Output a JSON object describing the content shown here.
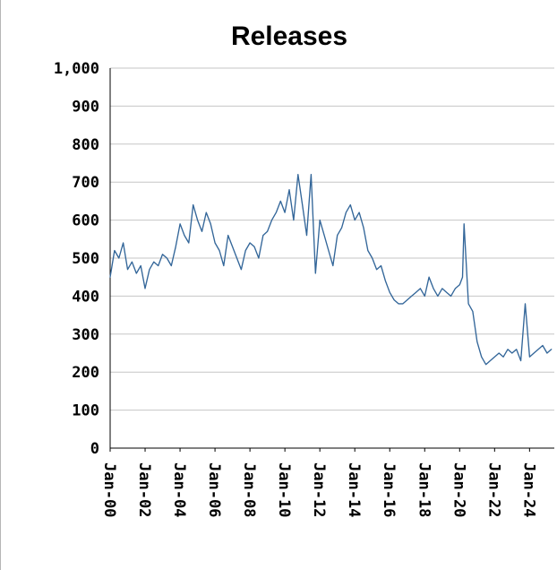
{
  "chart_data": {
    "type": "line",
    "title": "Releases",
    "xlabel": "",
    "ylabel": "",
    "ylim": [
      0,
      1000
    ],
    "y_ticks": [
      0,
      100,
      200,
      300,
      400,
      500,
      600,
      700,
      800,
      900,
      1000
    ],
    "y_tick_labels": [
      "0",
      "100",
      "200",
      "300",
      "400",
      "500",
      "600",
      "700",
      "800",
      "900",
      "1,000"
    ],
    "x_tick_labels": [
      "Jan-00",
      "Jan-02",
      "Jan-04",
      "Jan-06",
      "Jan-08",
      "Jan-10",
      "Jan-12",
      "Jan-14",
      "Jan-16",
      "Jan-18",
      "Jan-20",
      "Jan-22",
      "Jan-24"
    ],
    "xlim": [
      "2000-01",
      "2025-06"
    ],
    "grid": true,
    "legend": "none",
    "colors": {
      "series": "#336699",
      "grid": "#c6c6c6",
      "axis": "#000000"
    },
    "series": [
      {
        "x": [
          "2000-01",
          "2000-04",
          "2000-07",
          "2000-10",
          "2001-01",
          "2001-04",
          "2001-07",
          "2001-10",
          "2002-01",
          "2002-04",
          "2002-07",
          "2002-10",
          "2003-01",
          "2003-04",
          "2003-07",
          "2003-10",
          "2004-01",
          "2004-04",
          "2004-07",
          "2004-10",
          "2005-01",
          "2005-04",
          "2005-07",
          "2005-10",
          "2006-01",
          "2006-04",
          "2006-07",
          "2006-10",
          "2007-01",
          "2007-04",
          "2007-07",
          "2007-10",
          "2008-01",
          "2008-04",
          "2008-07",
          "2008-10",
          "2009-01",
          "2009-04",
          "2009-07",
          "2009-10",
          "2010-01",
          "2010-04",
          "2010-07",
          "2010-10",
          "2011-01",
          "2011-04",
          "2011-07",
          "2011-10",
          "2012-01",
          "2012-04",
          "2012-07",
          "2012-10",
          "2013-01",
          "2013-04",
          "2013-07",
          "2013-10",
          "2014-01",
          "2014-04",
          "2014-07",
          "2014-10",
          "2015-01",
          "2015-04",
          "2015-07",
          "2015-10",
          "2016-01",
          "2016-04",
          "2016-07",
          "2016-10",
          "2017-01",
          "2017-04",
          "2017-07",
          "2017-10",
          "2018-01",
          "2018-04",
          "2018-07",
          "2018-10",
          "2019-01",
          "2019-04",
          "2019-07",
          "2019-10",
          "2020-01",
          "2020-03",
          "2020-04",
          "2020-07",
          "2020-10",
          "2021-01",
          "2021-04",
          "2021-07",
          "2021-10",
          "2022-01",
          "2022-04",
          "2022-07",
          "2022-10",
          "2023-01",
          "2023-04",
          "2023-07",
          "2023-10",
          "2024-01",
          "2024-04",
          "2024-07",
          "2024-10",
          "2025-01",
          "2025-04"
        ],
        "values": [
          450,
          520,
          500,
          540,
          470,
          490,
          460,
          480,
          420,
          470,
          490,
          480,
          510,
          500,
          480,
          530,
          590,
          560,
          540,
          640,
          600,
          570,
          620,
          590,
          540,
          520,
          480,
          560,
          530,
          500,
          470,
          520,
          540,
          530,
          500,
          560,
          570,
          600,
          620,
          650,
          620,
          680,
          600,
          720,
          640,
          560,
          720,
          460,
          600,
          560,
          520,
          480,
          560,
          580,
          620,
          640,
          600,
          620,
          580,
          520,
          500,
          470,
          480,
          440,
          410,
          390,
          380,
          380,
          390,
          400,
          410,
          420,
          400,
          450,
          420,
          400,
          420,
          410,
          400,
          420,
          430,
          450,
          590,
          380,
          360,
          280,
          240,
          220,
          230,
          240,
          250,
          240,
          260,
          250,
          260,
          230,
          380,
          240,
          250,
          260,
          270,
          250,
          260
        ]
      }
    ]
  }
}
